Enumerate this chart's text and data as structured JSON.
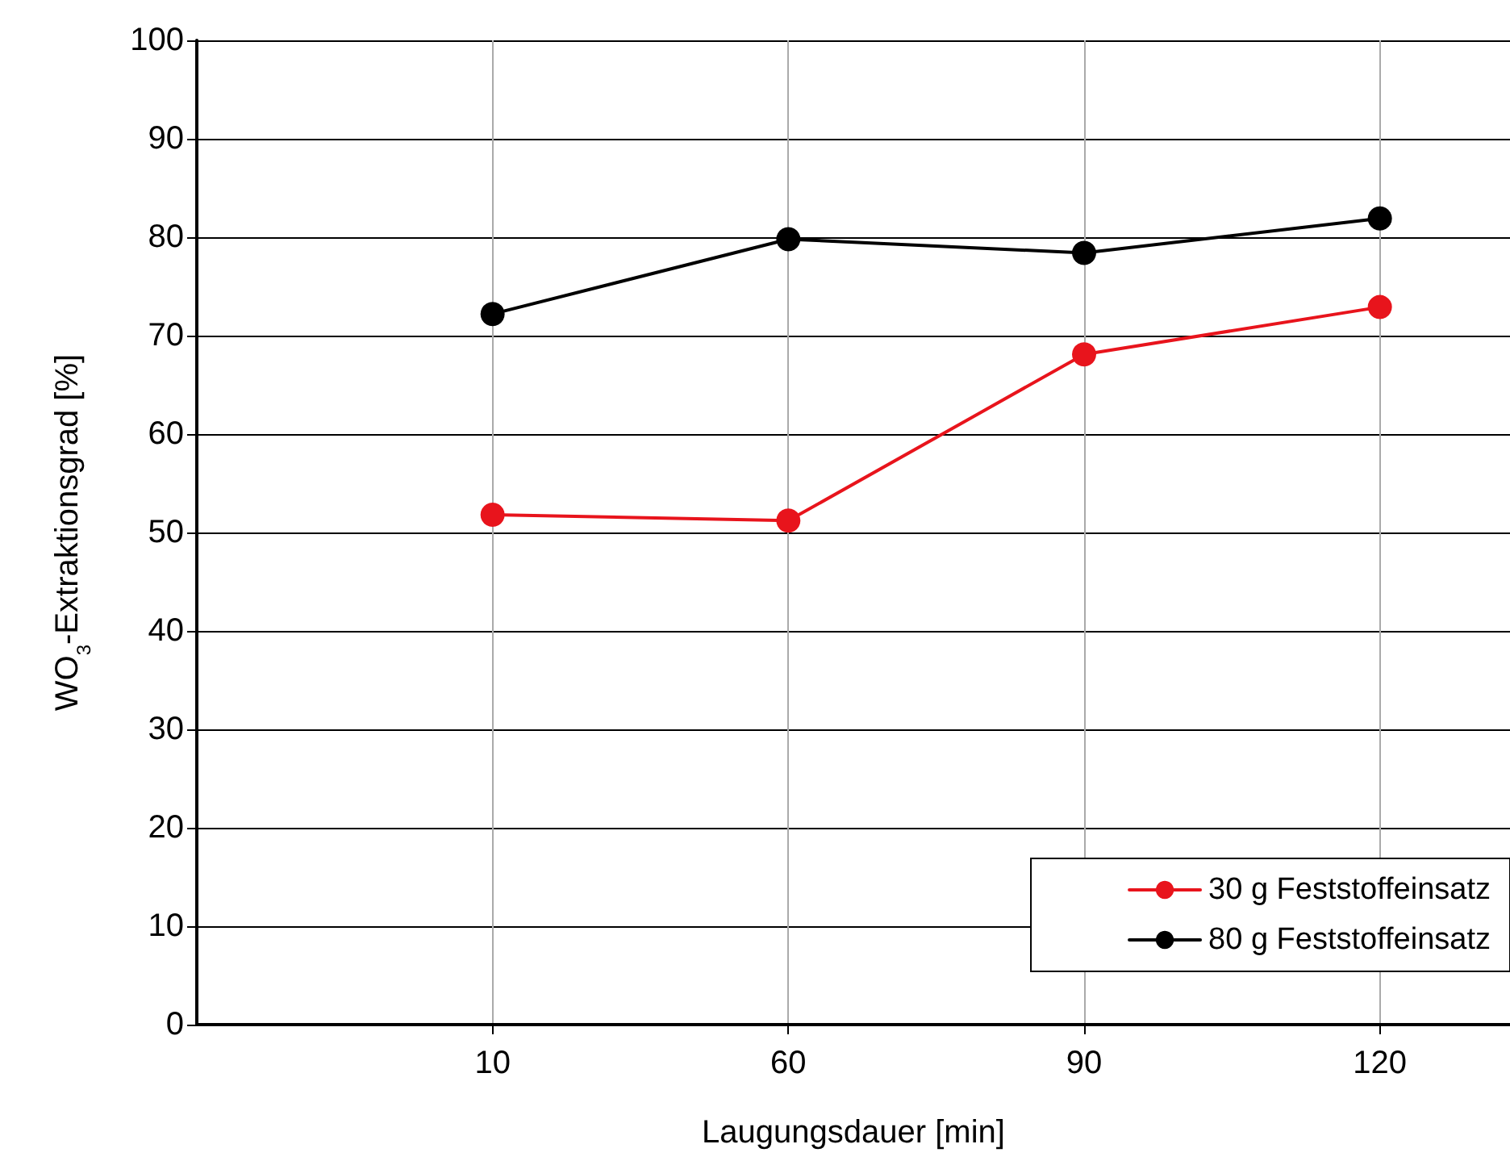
{
  "chart_data": {
    "type": "line",
    "xlabel": "Laugungsdauer [min]",
    "ylabel": "WO$_{3}$-Extraktionsgrad [%]",
    "categories": [
      null,
      "10",
      "60",
      "90",
      "120"
    ],
    "series": [
      {
        "name": "30 g Feststoffeinsatz",
        "color": "#e8141c",
        "values": [
          null,
          51.8,
          51.2,
          68.1,
          72.9
        ]
      },
      {
        "name": "80 g Feststoffeinsatz",
        "color": "#000000",
        "values": [
          null,
          72.2,
          79.8,
          78.4,
          81.9
        ]
      }
    ],
    "ylim": [
      0,
      100
    ],
    "yticks": [
      0,
      10,
      20,
      30,
      40,
      50,
      60,
      70,
      80,
      90,
      100
    ],
    "grid": true,
    "legend": "bottom right",
    "marker": "circle",
    "line_style": "solid"
  }
}
